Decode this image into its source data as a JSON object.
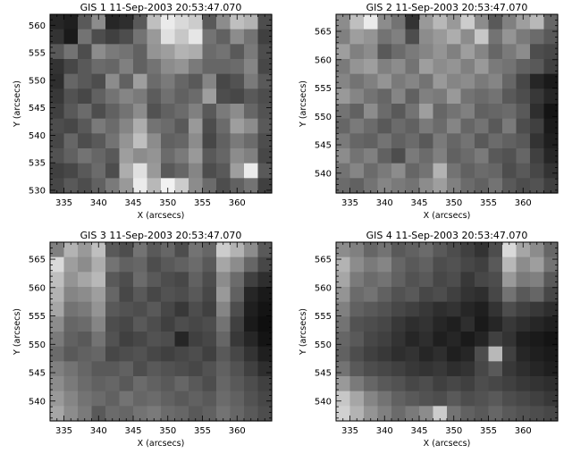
{
  "chart_data": [
    {
      "type": "heatmap",
      "title": "GIS 1 11-Sep-2003 20:53:47.070",
      "xlabel": "X (arcsecs)",
      "ylabel": "Y (arcsecs)",
      "xlim": [
        333,
        365
      ],
      "ylim": [
        529.5,
        562
      ],
      "xticks": [
        335,
        340,
        345,
        350,
        355,
        360
      ],
      "yticks": [
        530,
        535,
        540,
        545,
        550,
        555,
        560
      ],
      "grid": false,
      "colormap": "grayscale",
      "values": [
        [
          0.15,
          0.12,
          0.35,
          0.55,
          0.15,
          0.18,
          0.35,
          0.75,
          0.92,
          0.85,
          0.8,
          0.35,
          0.55,
          0.75,
          0.7,
          0.3
        ],
        [
          0.2,
          0.1,
          0.45,
          0.3,
          0.25,
          0.3,
          0.45,
          0.6,
          0.88,
          0.78,
          0.9,
          0.45,
          0.38,
          0.55,
          0.45,
          0.25
        ],
        [
          0.35,
          0.45,
          0.3,
          0.55,
          0.48,
          0.45,
          0.38,
          0.58,
          0.62,
          0.7,
          0.68,
          0.42,
          0.45,
          0.35,
          0.48,
          0.3
        ],
        [
          0.2,
          0.28,
          0.35,
          0.42,
          0.4,
          0.5,
          0.38,
          0.45,
          0.55,
          0.58,
          0.48,
          0.4,
          0.4,
          0.42,
          0.52,
          0.28
        ],
        [
          0.18,
          0.4,
          0.35,
          0.3,
          0.55,
          0.38,
          0.62,
          0.42,
          0.48,
          0.4,
          0.35,
          0.52,
          0.28,
          0.32,
          0.48,
          0.35
        ],
        [
          0.22,
          0.32,
          0.28,
          0.38,
          0.45,
          0.52,
          0.48,
          0.36,
          0.44,
          0.38,
          0.42,
          0.62,
          0.3,
          0.28,
          0.35,
          0.3
        ],
        [
          0.25,
          0.35,
          0.42,
          0.3,
          0.38,
          0.45,
          0.55,
          0.32,
          0.38,
          0.42,
          0.5,
          0.35,
          0.48,
          0.55,
          0.4,
          0.32
        ],
        [
          0.3,
          0.28,
          0.35,
          0.48,
          0.42,
          0.52,
          0.68,
          0.45,
          0.42,
          0.35,
          0.6,
          0.3,
          0.42,
          0.62,
          0.55,
          0.35
        ],
        [
          0.28,
          0.4,
          0.3,
          0.35,
          0.45,
          0.58,
          0.75,
          0.55,
          0.38,
          0.4,
          0.55,
          0.28,
          0.38,
          0.48,
          0.42,
          0.3
        ],
        [
          0.32,
          0.38,
          0.45,
          0.4,
          0.35,
          0.62,
          0.55,
          0.58,
          0.42,
          0.48,
          0.6,
          0.35,
          0.4,
          0.55,
          0.5,
          0.28
        ],
        [
          0.25,
          0.28,
          0.35,
          0.42,
          0.3,
          0.68,
          0.88,
          0.6,
          0.35,
          0.4,
          0.52,
          0.3,
          0.35,
          0.62,
          0.92,
          0.35
        ],
        [
          0.28,
          0.35,
          0.3,
          0.38,
          0.48,
          0.6,
          0.92,
          0.72,
          0.95,
          0.8,
          0.55,
          0.42,
          0.3,
          0.38,
          0.45,
          0.25
        ]
      ]
    },
    {
      "type": "heatmap",
      "title": "GIS 2 11-Sep-2003 20:53:47.070",
      "xlabel": "X (arcsecs)",
      "ylabel": "Y (arcsecs)",
      "xlim": [
        333,
        365
      ],
      "ylim": [
        536.5,
        568
      ],
      "xticks": [
        335,
        340,
        345,
        350,
        355,
        360
      ],
      "yticks": [
        540,
        545,
        550,
        555,
        560,
        565
      ],
      "grid": false,
      "colormap": "grayscale",
      "values": [
        [
          0.55,
          0.75,
          0.92,
          0.55,
          0.45,
          0.2,
          0.6,
          0.72,
          0.6,
          0.8,
          0.55,
          0.35,
          0.5,
          0.62,
          0.72,
          0.4
        ],
        [
          0.5,
          0.62,
          0.58,
          0.45,
          0.5,
          0.3,
          0.55,
          0.6,
          0.68,
          0.55,
          0.78,
          0.45,
          0.58,
          0.48,
          0.42,
          0.35
        ],
        [
          0.62,
          0.5,
          0.55,
          0.35,
          0.42,
          0.48,
          0.52,
          0.58,
          0.5,
          0.62,
          0.52,
          0.4,
          0.48,
          0.55,
          0.3,
          0.28
        ],
        [
          0.48,
          0.58,
          0.62,
          0.5,
          0.55,
          0.45,
          0.62,
          0.55,
          0.58,
          0.5,
          0.6,
          0.48,
          0.45,
          0.38,
          0.35,
          0.25
        ],
        [
          0.52,
          0.45,
          0.5,
          0.58,
          0.48,
          0.52,
          0.45,
          0.6,
          0.52,
          0.55,
          0.48,
          0.52,
          0.4,
          0.28,
          0.15,
          0.1
        ],
        [
          0.6,
          0.52,
          0.45,
          0.4,
          0.52,
          0.38,
          0.5,
          0.48,
          0.6,
          0.45,
          0.42,
          0.45,
          0.35,
          0.3,
          0.22,
          0.15
        ],
        [
          0.45,
          0.38,
          0.55,
          0.42,
          0.35,
          0.45,
          0.62,
          0.4,
          0.45,
          0.5,
          0.38,
          0.4,
          0.42,
          0.35,
          0.18,
          0.08
        ],
        [
          0.4,
          0.48,
          0.42,
          0.35,
          0.42,
          0.38,
          0.48,
          0.42,
          0.52,
          0.4,
          0.45,
          0.35,
          0.48,
          0.3,
          0.25,
          0.1
        ],
        [
          0.48,
          0.4,
          0.38,
          0.45,
          0.38,
          0.42,
          0.35,
          0.48,
          0.4,
          0.45,
          0.35,
          0.42,
          0.38,
          0.35,
          0.2,
          0.12
        ],
        [
          0.55,
          0.45,
          0.5,
          0.38,
          0.3,
          0.48,
          0.42,
          0.5,
          0.38,
          0.42,
          0.48,
          0.35,
          0.32,
          0.4,
          0.25,
          0.15
        ],
        [
          0.45,
          0.52,
          0.42,
          0.48,
          0.55,
          0.4,
          0.45,
          0.7,
          0.45,
          0.38,
          0.42,
          0.4,
          0.3,
          0.35,
          0.28,
          0.2
        ],
        [
          0.42,
          0.38,
          0.45,
          0.52,
          0.48,
          0.45,
          0.55,
          0.62,
          0.5,
          0.42,
          0.38,
          0.45,
          0.35,
          0.3,
          0.32,
          0.25
        ]
      ]
    },
    {
      "type": "heatmap",
      "title": "GIS 3 11-Sep-2003 20:53:47.070",
      "xlabel": "X (arcsecs)",
      "ylabel": "Y (arcsecs)",
      "xlim": [
        333,
        365
      ],
      "ylim": [
        536.5,
        568
      ],
      "xticks": [
        335,
        340,
        345,
        350,
        355,
        360
      ],
      "yticks": [
        540,
        545,
        550,
        555,
        560,
        565
      ],
      "grid": false,
      "colormap": "grayscale",
      "values": [
        [
          0.5,
          0.7,
          0.6,
          0.75,
          0.35,
          0.3,
          0.45,
          0.35,
          0.4,
          0.3,
          0.45,
          0.4,
          0.8,
          0.7,
          0.55,
          0.35
        ],
        [
          0.85,
          0.62,
          0.55,
          0.68,
          0.45,
          0.38,
          0.4,
          0.3,
          0.35,
          0.38,
          0.42,
          0.35,
          0.65,
          0.55,
          0.4,
          0.28
        ],
        [
          0.75,
          0.58,
          0.65,
          0.72,
          0.35,
          0.3,
          0.42,
          0.35,
          0.3,
          0.28,
          0.38,
          0.3,
          0.55,
          0.42,
          0.25,
          0.18
        ],
        [
          0.7,
          0.52,
          0.55,
          0.62,
          0.4,
          0.28,
          0.35,
          0.28,
          0.32,
          0.3,
          0.35,
          0.28,
          0.6,
          0.38,
          0.15,
          0.1
        ],
        [
          0.65,
          0.45,
          0.48,
          0.58,
          0.35,
          0.32,
          0.3,
          0.35,
          0.28,
          0.22,
          0.3,
          0.25,
          0.52,
          0.3,
          0.12,
          0.08
        ],
        [
          0.55,
          0.4,
          0.42,
          0.52,
          0.3,
          0.28,
          0.35,
          0.3,
          0.25,
          0.3,
          0.28,
          0.3,
          0.45,
          0.25,
          0.1,
          0.06
        ],
        [
          0.48,
          0.38,
          0.35,
          0.45,
          0.32,
          0.25,
          0.28,
          0.32,
          0.3,
          0.15,
          0.25,
          0.28,
          0.4,
          0.22,
          0.15,
          0.08
        ],
        [
          0.42,
          0.35,
          0.38,
          0.4,
          0.28,
          0.3,
          0.32,
          0.28,
          0.25,
          0.28,
          0.3,
          0.25,
          0.35,
          0.28,
          0.2,
          0.12
        ],
        [
          0.5,
          0.45,
          0.4,
          0.35,
          0.35,
          0.38,
          0.3,
          0.35,
          0.32,
          0.3,
          0.28,
          0.32,
          0.38,
          0.32,
          0.25,
          0.18
        ],
        [
          0.55,
          0.48,
          0.42,
          0.38,
          0.4,
          0.35,
          0.42,
          0.38,
          0.35,
          0.4,
          0.35,
          0.3,
          0.4,
          0.35,
          0.3,
          0.25
        ],
        [
          0.6,
          0.52,
          0.45,
          0.42,
          0.38,
          0.45,
          0.4,
          0.42,
          0.38,
          0.35,
          0.38,
          0.35,
          0.42,
          0.38,
          0.32,
          0.28
        ],
        [
          0.65,
          0.55,
          0.48,
          0.35,
          0.42,
          0.4,
          0.45,
          0.48,
          0.42,
          0.4,
          0.35,
          0.38,
          0.45,
          0.4,
          0.35,
          0.3
        ]
      ]
    },
    {
      "type": "heatmap",
      "title": "GIS 4 11-Sep-2003 20:53:47.070",
      "xlabel": "X (arcsecs)",
      "ylabel": "Y (arcsecs)",
      "xlim": [
        333,
        365
      ],
      "ylim": [
        536.5,
        568
      ],
      "xticks": [
        335,
        340,
        345,
        350,
        355,
        360
      ],
      "yticks": [
        540,
        545,
        550,
        555,
        560,
        565
      ],
      "grid": false,
      "colormap": "grayscale",
      "values": [
        [
          0.55,
          0.5,
          0.4,
          0.45,
          0.35,
          0.38,
          0.42,
          0.35,
          0.3,
          0.25,
          0.2,
          0.3,
          0.85,
          0.65,
          0.55,
          0.4
        ],
        [
          0.7,
          0.55,
          0.48,
          0.52,
          0.4,
          0.35,
          0.38,
          0.3,
          0.32,
          0.28,
          0.25,
          0.35,
          0.72,
          0.55,
          0.62,
          0.45
        ],
        [
          0.65,
          0.48,
          0.42,
          0.45,
          0.38,
          0.32,
          0.35,
          0.28,
          0.3,
          0.22,
          0.28,
          0.3,
          0.6,
          0.48,
          0.5,
          0.35
        ],
        [
          0.58,
          0.42,
          0.45,
          0.38,
          0.32,
          0.35,
          0.28,
          0.3,
          0.25,
          0.2,
          0.18,
          0.28,
          0.45,
          0.35,
          0.4,
          0.28
        ],
        [
          0.5,
          0.38,
          0.35,
          0.32,
          0.28,
          0.25,
          0.22,
          0.18,
          0.2,
          0.15,
          0.12,
          0.2,
          0.3,
          0.25,
          0.22,
          0.18
        ],
        [
          0.45,
          0.32,
          0.3,
          0.28,
          0.22,
          0.18,
          0.2,
          0.15,
          0.12,
          0.18,
          0.1,
          0.15,
          0.22,
          0.18,
          0.15,
          0.12
        ],
        [
          0.4,
          0.35,
          0.28,
          0.25,
          0.2,
          0.15,
          0.18,
          0.12,
          0.15,
          0.1,
          0.14,
          0.25,
          0.2,
          0.12,
          0.1,
          0.08
        ],
        [
          0.38,
          0.3,
          0.25,
          0.22,
          0.18,
          0.2,
          0.15,
          0.18,
          0.12,
          0.15,
          0.3,
          0.72,
          0.25,
          0.15,
          0.12,
          0.1
        ],
        [
          0.45,
          0.35,
          0.3,
          0.28,
          0.25,
          0.22,
          0.2,
          0.22,
          0.18,
          0.2,
          0.28,
          0.35,
          0.22,
          0.18,
          0.15,
          0.12
        ],
        [
          0.6,
          0.48,
          0.4,
          0.35,
          0.32,
          0.28,
          0.3,
          0.25,
          0.28,
          0.25,
          0.3,
          0.28,
          0.25,
          0.22,
          0.2,
          0.18
        ],
        [
          0.78,
          0.65,
          0.52,
          0.45,
          0.38,
          0.35,
          0.32,
          0.3,
          0.35,
          0.3,
          0.32,
          0.35,
          0.3,
          0.28,
          0.25,
          0.22
        ],
        [
          0.82,
          0.7,
          0.58,
          0.5,
          0.42,
          0.48,
          0.55,
          0.8,
          0.45,
          0.38,
          0.35,
          0.4,
          0.35,
          0.32,
          0.3,
          0.28
        ]
      ]
    }
  ]
}
